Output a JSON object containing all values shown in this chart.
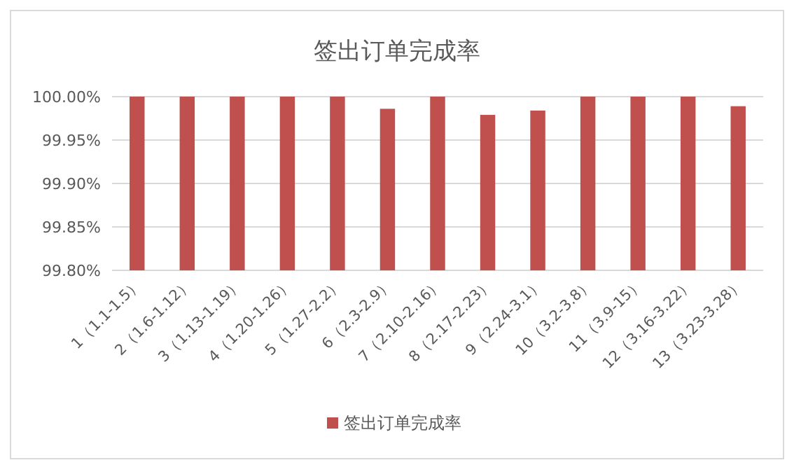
{
  "chart_data": {
    "type": "bar",
    "title": "签出订单完成率",
    "categories": [
      "1（1.1-1.5）",
      "2（1.6-1.12）",
      "3（1.13-1.19）",
      "4（1.20-1.26）",
      "5（1.27-2.2）",
      "6（2.3-2.9）",
      "7（2.10-2.16）",
      "8（2.17-2.23）",
      "9（2.24-3.1）",
      "10（3.2-3.8）",
      "11（3.9-15）",
      "12（3.16-3.22）",
      "13（3.23-3.28）"
    ],
    "series": [
      {
        "name": "签出订单完成率",
        "color": "#c0504d",
        "values": [
          100,
          100,
          100,
          100,
          100,
          99.986,
          100,
          99.979,
          99.984,
          100,
          100,
          100,
          99.989
        ]
      }
    ],
    "ylim": [
      99.8,
      100
    ],
    "yticks": [
      {
        "value": 99.8,
        "label": "99.80%"
      },
      {
        "value": 99.85,
        "label": "99.85%"
      },
      {
        "value": 99.9,
        "label": "99.90%"
      },
      {
        "value": 99.95,
        "label": "99.95%"
      },
      {
        "value": 100,
        "label": "100.00%"
      }
    ],
    "grid": "y",
    "legend": "bottom"
  }
}
